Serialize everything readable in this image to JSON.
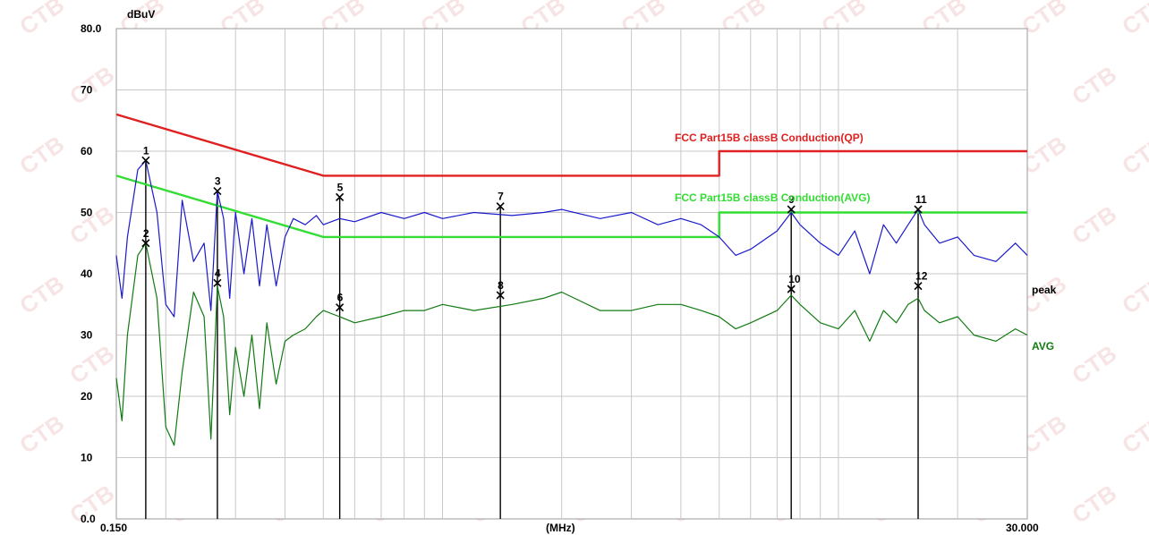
{
  "chart_data": {
    "type": "line",
    "title": "",
    "xlabel": "(MHz)",
    "ylabel": "dBuV",
    "x_scale": "log",
    "xlim": [
      0.15,
      30.0
    ],
    "ylim": [
      0,
      80
    ],
    "x_tick_labels": [
      "0.150",
      "30.000"
    ],
    "y_ticks": [
      {
        "value": 80,
        "label": "80.0"
      },
      {
        "value": 70,
        "label": "70"
      },
      {
        "value": 60,
        "label": "60"
      },
      {
        "value": 50,
        "label": "50"
      },
      {
        "value": 40,
        "label": "40"
      },
      {
        "value": 30,
        "label": "30"
      },
      {
        "value": 20,
        "label": "20"
      },
      {
        "value": 10,
        "label": "10"
      },
      {
        "value": 0,
        "label": "0.0"
      }
    ],
    "grid": true,
    "series": [
      {
        "name": "FCC  Part15B classB Conduction(QP)",
        "color": "#e02020",
        "x": [
          0.15,
          0.5,
          0.5,
          5.0,
          5.0,
          30.0
        ],
        "y": [
          66,
          56,
          56,
          56,
          60,
          60
        ]
      },
      {
        "name": "FCC  Part15B classB Conduction(AVG)",
        "color": "#33dd33",
        "x": [
          0.15,
          0.5,
          0.5,
          5.0,
          5.0,
          30.0
        ],
        "y": [
          56,
          46,
          46,
          46,
          50,
          50
        ]
      },
      {
        "name": "peak",
        "color": "#1a1acc",
        "x": [
          0.15,
          0.155,
          0.16,
          0.17,
          0.178,
          0.19,
          0.2,
          0.21,
          0.22,
          0.235,
          0.25,
          0.26,
          0.27,
          0.28,
          0.29,
          0.3,
          0.315,
          0.33,
          0.345,
          0.36,
          0.38,
          0.4,
          0.42,
          0.45,
          0.48,
          0.5,
          0.55,
          0.6,
          0.7,
          0.8,
          0.9,
          1.0,
          1.2,
          1.5,
          1.8,
          2.0,
          2.5,
          3.0,
          3.5,
          4.0,
          4.5,
          5.0,
          5.5,
          6.0,
          7.0,
          7.6,
          8.0,
          9.0,
          10.0,
          11.0,
          12.0,
          13.0,
          14.0,
          15.0,
          15.9,
          16.5,
          18.0,
          20.0,
          22.0,
          25.0,
          28.0,
          30.0
        ],
        "y": [
          43,
          36,
          46,
          57,
          58.5,
          50,
          35,
          33,
          52,
          42,
          45,
          34,
          53.5,
          49,
          36,
          50,
          40,
          49,
          38,
          48,
          38,
          46,
          49,
          48,
          49.5,
          48,
          49,
          48.5,
          50,
          49,
          50,
          49,
          50,
          49.5,
          50,
          50.5,
          49,
          50,
          48,
          49,
          48,
          46,
          43,
          44,
          47,
          50,
          48,
          45,
          43,
          47,
          40,
          48,
          45,
          48,
          50.5,
          48,
          45,
          46,
          43,
          42,
          45,
          43
        ]
      },
      {
        "name": "AVG",
        "color": "#127a12",
        "x": [
          0.15,
          0.155,
          0.16,
          0.17,
          0.178,
          0.19,
          0.2,
          0.21,
          0.22,
          0.235,
          0.25,
          0.26,
          0.27,
          0.28,
          0.29,
          0.3,
          0.315,
          0.33,
          0.345,
          0.36,
          0.38,
          0.4,
          0.42,
          0.45,
          0.48,
          0.5,
          0.55,
          0.6,
          0.7,
          0.8,
          0.9,
          1.0,
          1.2,
          1.5,
          1.8,
          2.0,
          2.5,
          3.0,
          3.5,
          4.0,
          4.5,
          5.0,
          5.5,
          6.0,
          7.0,
          7.6,
          8.0,
          9.0,
          10.0,
          11.0,
          12.0,
          13.0,
          14.0,
          15.0,
          15.9,
          16.5,
          18.0,
          20.0,
          22.0,
          25.0,
          28.0,
          30.0
        ],
        "y": [
          23,
          16,
          30,
          43,
          45,
          36,
          15,
          12,
          24,
          37,
          33,
          13,
          38,
          33,
          17,
          28,
          20,
          30,
          18,
          32,
          22,
          29,
          30,
          31,
          33,
          34,
          33,
          32,
          33,
          34,
          34,
          35,
          34,
          35,
          36,
          37,
          34,
          34,
          35,
          35,
          34,
          33,
          31,
          32,
          34,
          36.5,
          35,
          32,
          31,
          34,
          29,
          34,
          32,
          35,
          36,
          34,
          32,
          33,
          30,
          29,
          31,
          30
        ]
      }
    ],
    "markers": [
      {
        "label": "1",
        "x": 0.178,
        "y": 58.5
      },
      {
        "label": "2",
        "x": 0.178,
        "y": 45
      },
      {
        "label": "3",
        "x": 0.27,
        "y": 53.5
      },
      {
        "label": "4",
        "x": 0.27,
        "y": 38.5
      },
      {
        "label": "5",
        "x": 0.55,
        "y": 52.5
      },
      {
        "label": "6",
        "x": 0.55,
        "y": 34.5
      },
      {
        "label": "7",
        "x": 1.4,
        "y": 51
      },
      {
        "label": "8",
        "x": 1.4,
        "y": 36.5
      },
      {
        "label": "9",
        "x": 7.6,
        "y": 50.5
      },
      {
        "label": "10",
        "x": 7.6,
        "y": 37.5
      },
      {
        "label": "11",
        "x": 15.9,
        "y": 50.5
      },
      {
        "label": "12",
        "x": 15.9,
        "y": 38
      }
    ],
    "legend_labels": {
      "qp": "FCC  Part15B classB Conduction(QP)",
      "avg": "FCC  Part15B classB Conduction(AVG)",
      "peak": "peak",
      "avg_trace": "AVG"
    },
    "watermark_text": "CTB"
  }
}
